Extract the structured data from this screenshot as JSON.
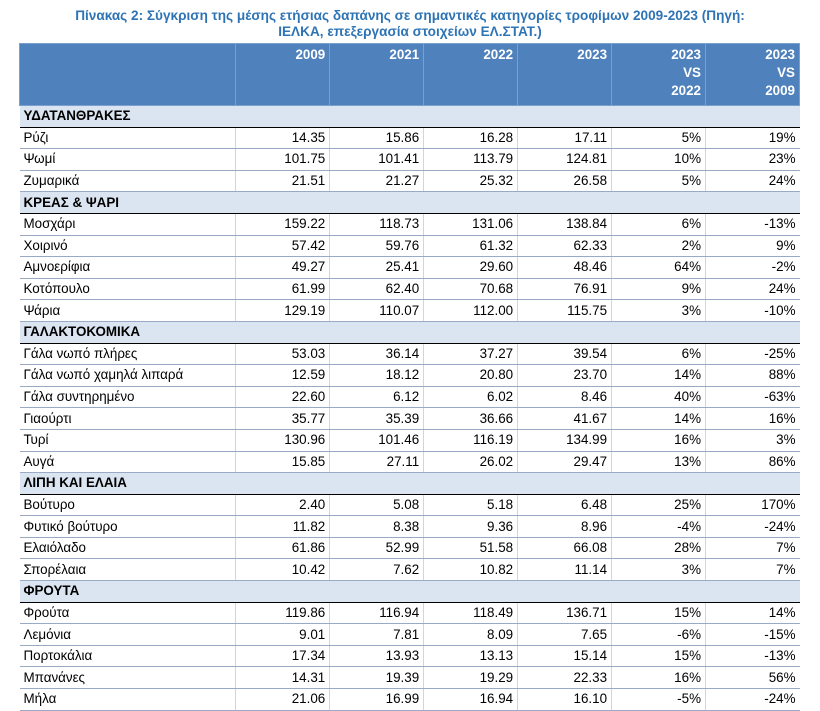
{
  "caption": {
    "line1": "Πίνακας 2: Σύγκριση της μέσης ετήσιας δαπάνης σε σημαντικές κατηγορίες τροφίμων 2009-2023 (Πηγή:",
    "line2": "ΙΕΛΚΑ, επεξεργασία στοιχείων ΕΛ.ΣΤΑΤ.)"
  },
  "header": {
    "c2009": "2009",
    "c2021": "2021",
    "c2022": "2022",
    "c2023": "2023",
    "vs2022": [
      "2023",
      "VS",
      "2022"
    ],
    "vs2009": [
      "2023",
      "VS",
      "2009"
    ]
  },
  "groups": [
    {
      "title": "ΥΔΑΤΑΝΘΡΑΚΕΣ",
      "rows": [
        [
          "Ρύζι",
          "14.35",
          "15.86",
          "16.28",
          "17.11",
          "5%",
          "19%"
        ],
        [
          "Ψωμί",
          "101.75",
          "101.41",
          "113.79",
          "124.81",
          "10%",
          "23%"
        ],
        [
          "Ζυμαρικά",
          "21.51",
          "21.27",
          "25.32",
          "26.58",
          "5%",
          "24%"
        ]
      ]
    },
    {
      "title": "ΚΡΕΑΣ & ΨΑΡΙ",
      "rows": [
        [
          "Μοσχάρι",
          "159.22",
          "118.73",
          "131.06",
          "138.84",
          "6%",
          "-13%"
        ],
        [
          "Χοιρινό",
          "57.42",
          "59.76",
          "61.32",
          "62.33",
          "2%",
          "9%"
        ],
        [
          "Αμνοερίφια",
          "49.27",
          "25.41",
          "29.60",
          "48.46",
          "64%",
          "-2%"
        ],
        [
          "Κοτόπουλο",
          "61.99",
          "62.40",
          "70.68",
          "76.91",
          "9%",
          "24%"
        ],
        [
          "Ψάρια",
          "129.19",
          "110.07",
          "112.00",
          "115.75",
          "3%",
          "-10%"
        ]
      ]
    },
    {
      "title": "ΓΑΛΑΚΤΟΚΟΜΙΚΑ",
      "rows": [
        [
          "Γάλα νωπό πλήρες",
          "53.03",
          "36.14",
          "37.27",
          "39.54",
          "6%",
          "-25%"
        ],
        [
          "Γάλα νωπό χαμηλά λιπαρά",
          "12.59",
          "18.12",
          "20.80",
          "23.70",
          "14%",
          "88%"
        ],
        [
          "Γάλα συντηρημένο",
          "22.60",
          "6.12",
          "6.02",
          "8.46",
          "40%",
          "-63%"
        ],
        [
          "Γιαούρτι",
          "35.77",
          "35.39",
          "36.66",
          "41.67",
          "14%",
          "16%"
        ],
        [
          "Τυρί",
          "130.96",
          "101.46",
          "116.19",
          "134.99",
          "16%",
          "3%"
        ],
        [
          "Αυγά",
          "15.85",
          "27.11",
          "26.02",
          "29.47",
          "13%",
          "86%"
        ]
      ]
    },
    {
      "title": "ΛΙΠΗ ΚΑΙ ΕΛΑΙΑ",
      "rows": [
        [
          "Βούτυρο",
          "2.40",
          "5.08",
          "5.18",
          "6.48",
          "25%",
          "170%"
        ],
        [
          "Φυτικό βούτυρο",
          "11.82",
          "8.38",
          "9.36",
          "8.96",
          "-4%",
          "-24%"
        ],
        [
          "Ελαιόλαδο",
          "61.86",
          "52.99",
          "51.58",
          "66.08",
          "28%",
          "7%"
        ],
        [
          "Σπορέλαια",
          "10.42",
          "7.62",
          "10.82",
          "11.14",
          "3%",
          "7%"
        ]
      ]
    },
    {
      "title": "ΦΡΟΥΤΑ",
      "rows": [
        [
          "Φρούτα",
          "119.86",
          "116.94",
          "118.49",
          "136.71",
          "15%",
          "14%"
        ],
        [
          "Λεμόνια",
          "9.01",
          "7.81",
          "8.09",
          "7.65",
          "-6%",
          "-15%"
        ],
        [
          "Πορτοκάλια",
          "17.34",
          "13.93",
          "13.13",
          "15.14",
          "15%",
          "-13%"
        ],
        [
          "Μπανάνες",
          "14.31",
          "19.39",
          "19.29",
          "22.33",
          "16%",
          "56%"
        ],
        [
          "Μήλα",
          "21.06",
          "16.99",
          "16.94",
          "16.10",
          "-5%",
          "-24%"
        ]
      ]
    }
  ]
}
